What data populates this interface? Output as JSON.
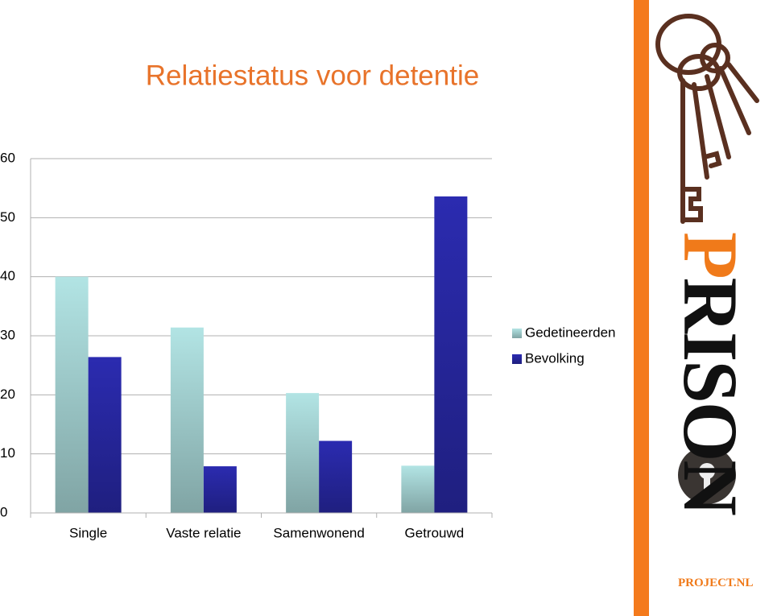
{
  "chart_data": {
    "type": "bar",
    "title": "Relatiestatus voor detentie",
    "categories": [
      "Single",
      "Vaste relatie",
      "Samenwonend",
      "Getrouwd"
    ],
    "series": [
      {
        "name": "Gedetineerden",
        "color": "#b2e4e4",
        "values": [
          40,
          31.4,
          20.3,
          8.0
        ]
      },
      {
        "name": "Bevolking",
        "color": "#2b2bb0",
        "values": [
          26.4,
          7.9,
          12.2,
          53.6
        ]
      }
    ],
    "ylim": [
      0,
      60
    ],
    "yticks": [
      0,
      10,
      20,
      30,
      40,
      50,
      60
    ],
    "grid": true,
    "legend": "right"
  },
  "logo": {
    "text": "PRISON",
    "subtext": "PROJECT.NL"
  }
}
